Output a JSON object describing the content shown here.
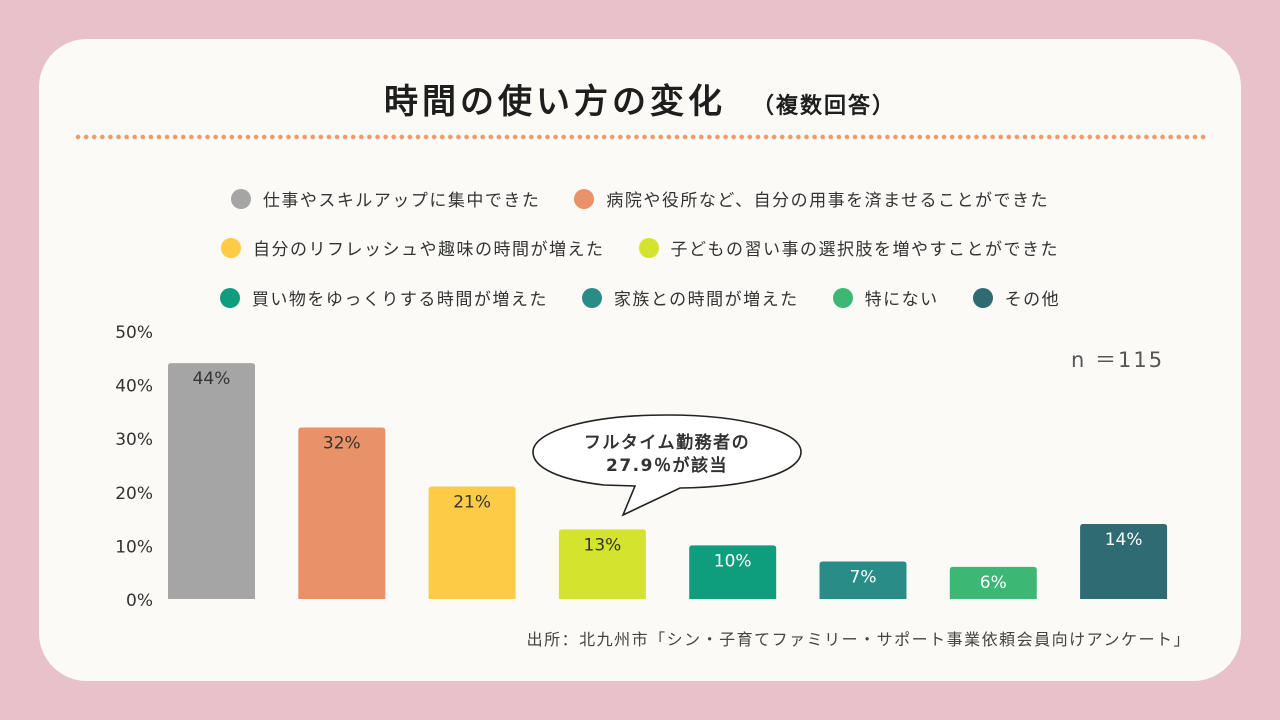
{
  "header": {
    "title": "時間の使い方の変化",
    "subtitle": "（複数回答）"
  },
  "sample": "n ＝115",
  "callout": {
    "line1": "フルタイム勤務者の",
    "line2": "27.9％が該当"
  },
  "source": "出所：北九州市「シン・子育てファミリー・サポート事業依頼会員向けアンケート」",
  "chart_data": {
    "type": "bar",
    "categories": [
      "仕事やスキルアップに集中できた",
      "病院や役所など、自分の用事を済ませることができた",
      "自分のリフレッシュや趣味の時間が増えた",
      "子どもの習い事の選択肢を増やすことができた",
      "買い物をゆっくりする時間が増えた",
      "家族との時間が増えた",
      "特にない",
      "その他"
    ],
    "values": [
      44,
      32,
      21,
      13,
      10,
      7,
      6,
      14
    ],
    "value_labels": [
      "44%",
      "32%",
      "21%",
      "13%",
      "10%",
      "7%",
      "6%",
      "14%"
    ],
    "colors": [
      "#a5a5a5",
      "#e9926a",
      "#fecb47",
      "#d4e32e",
      "#0f9e7d",
      "#2a8c86",
      "#3db874",
      "#2e6b72"
    ],
    "label_colors": [
      "#333333",
      "#333333",
      "#333333",
      "#333333",
      "#ffffff",
      "#ffffff",
      "#ffffff",
      "#ffffff"
    ],
    "yticks": [
      "0%",
      "10%",
      "20%",
      "30%",
      "40%",
      "50%"
    ],
    "ylim": [
      0,
      50
    ],
    "legend_position": "top",
    "grid": false
  }
}
